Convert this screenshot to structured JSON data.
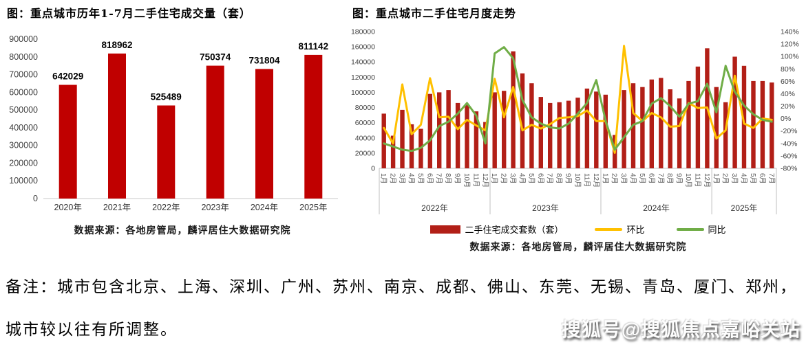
{
  "left_chart": {
    "title": "图：重点城市历年1-7月二手住宅成交量（套）",
    "source": "数据来源：各地房管局，麟评居住大数据研究院"
  },
  "right_chart": {
    "title": "图：重点城市二手住宅月度走势",
    "source": "数据来源：各地房管局，麟评居住大数据研究院",
    "legend": [
      {
        "label": "二手住宅成交套数（套）",
        "color": "#b21f17",
        "type": "bar"
      },
      {
        "label": "环比",
        "color": "#ffc000",
        "type": "line"
      },
      {
        "label": "同比",
        "color": "#70ad47",
        "type": "line"
      }
    ]
  },
  "note": {
    "line1": "备注：城市包含北京、上海、深圳、广州、苏州、南京、成都、佛山、东莞、无锡、青岛、厦门、郑州，",
    "line2": "城市较以往有所调整。"
  },
  "watermark": "搜狐号@搜狐焦点嘉峪关站",
  "chart_data": [
    {
      "type": "bar",
      "title": "图：重点城市历年1-7月二手住宅成交量（套）",
      "categories": [
        "2020年",
        "2021年",
        "2022年",
        "2023年",
        "2024年",
        "2025年"
      ],
      "values": [
        642029,
        818962,
        525489,
        750374,
        731804,
        811142
      ],
      "data_labels": [
        642029,
        818962,
        525489,
        750374,
        731804,
        811142
      ],
      "ylim": [
        0,
        900000
      ],
      "ytick_step": 100000,
      "bar_color": "#c00000",
      "grid": false,
      "legend_position": "none"
    },
    {
      "type": "bar",
      "combo": "bar+line",
      "title": "图：重点城市二手住宅月度走势",
      "year_groups": [
        {
          "label": "2022年",
          "months": [
            "1月",
            "2月",
            "3月",
            "4月",
            "5月",
            "6月",
            "7月",
            "8月",
            "9月",
            "10月",
            "11月",
            "12月"
          ]
        },
        {
          "label": "2023年",
          "months": [
            "1月",
            "2月",
            "3月",
            "4月",
            "5月",
            "6月",
            "7月",
            "8月",
            "9月",
            "10月",
            "11月",
            "12月"
          ]
        },
        {
          "label": "2024年",
          "months": [
            "1月",
            "2月",
            "3月",
            "4月",
            "5月",
            "6月",
            "7月",
            "8月",
            "9月",
            "10月",
            "11月",
            "12月"
          ]
        },
        {
          "label": "2025年",
          "months": [
            "1月",
            "2月",
            "3月",
            "4月",
            "5月",
            "6月",
            "7月"
          ]
        }
      ],
      "left_axis": {
        "min": 0,
        "max": 180000,
        "step": 20000
      },
      "right_axis": {
        "min": -80,
        "max": 140,
        "step": 20,
        "unit": "%"
      },
      "grid": false,
      "legend_position": "bottom",
      "series": [
        {
          "name": "二手住宅成交套数（套）",
          "type": "bar",
          "axis": "left",
          "color": "#b21f17",
          "values": [
            72000,
            43000,
            77000,
            58000,
            52000,
            98000,
            100000,
            103000,
            86000,
            84000,
            75000,
            61000,
            100000,
            102000,
            154000,
            125000,
            112000,
            94000,
            86000,
            87000,
            89000,
            93000,
            105000,
            101000,
            97000,
            44000,
            103000,
            112000,
            107000,
            117000,
            119000,
            104000,
            92000,
            115000,
            134000,
            158000,
            107000,
            87000,
            147000,
            135000,
            115000,
            115000,
            113000
          ]
        },
        {
          "name": "环比",
          "type": "line",
          "axis": "right",
          "color": "#ffc000",
          "values": [
            -15,
            -40,
            55,
            -25,
            -10,
            65,
            2,
            3,
            -17,
            -2,
            -11,
            -19,
            64,
            2,
            51,
            -19,
            -10,
            -16,
            -9,
            1,
            2,
            4,
            13,
            -4,
            -4,
            -55,
            117,
            9,
            -4,
            9,
            2,
            -13,
            -12,
            25,
            17,
            18,
            -32,
            -19,
            69,
            -8,
            -15,
            0,
            -2
          ]
        },
        {
          "name": "同比",
          "type": "line",
          "axis": "right",
          "color": "#70ad47",
          "values": [
            -40,
            -45,
            -50,
            -52,
            -47,
            -35,
            -12,
            -5,
            8,
            25,
            5,
            -40,
            105,
            115,
            97,
            30,
            2,
            -8,
            -14,
            -16,
            -8,
            8,
            25,
            62,
            -3,
            -50,
            -30,
            -10,
            -4,
            24,
            33,
            20,
            3,
            24,
            28,
            56,
            10,
            85,
            43,
            21,
            7,
            -2,
            -5
          ]
        }
      ]
    }
  ]
}
